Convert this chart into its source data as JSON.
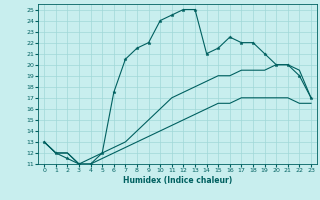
{
  "xlabel": "Humidex (Indice chaleur)",
  "bg_color": "#c8eeee",
  "grid_color": "#a0d8d8",
  "line_color": "#006060",
  "xlim": [
    -0.5,
    23.5
  ],
  "ylim": [
    11,
    25.5
  ],
  "yticks": [
    11,
    12,
    13,
    14,
    15,
    16,
    17,
    18,
    19,
    20,
    21,
    22,
    23,
    24,
    25
  ],
  "xticks": [
    0,
    1,
    2,
    3,
    4,
    5,
    6,
    7,
    8,
    9,
    10,
    11,
    12,
    13,
    14,
    15,
    16,
    17,
    18,
    19,
    20,
    21,
    22,
    23
  ],
  "series1_x": [
    0,
    1,
    2,
    3,
    4,
    5,
    6,
    7,
    8,
    9,
    10,
    11,
    12,
    13,
    14,
    15,
    16,
    17,
    18,
    19,
    20,
    21,
    22,
    23
  ],
  "series1_y": [
    13,
    12,
    11.5,
    11,
    11,
    12,
    17.5,
    20.5,
    21.5,
    22,
    24,
    24.5,
    25,
    25,
    21,
    21.5,
    22.5,
    22,
    22,
    21,
    20,
    20,
    19,
    17
  ],
  "series2_x": [
    0,
    1,
    2,
    3,
    4,
    5,
    6,
    7,
    8,
    9,
    10,
    11,
    12,
    13,
    14,
    15,
    16,
    17,
    18,
    19,
    20,
    21,
    22,
    23
  ],
  "series2_y": [
    13,
    12,
    12,
    11,
    11.5,
    12,
    12.5,
    13,
    14,
    15,
    16,
    17,
    17.5,
    18,
    18.5,
    19,
    19,
    19.5,
    19.5,
    19.5,
    20,
    20,
    19.5,
    17
  ],
  "series3_x": [
    0,
    1,
    2,
    3,
    4,
    5,
    6,
    7,
    8,
    9,
    10,
    11,
    12,
    13,
    14,
    15,
    16,
    17,
    18,
    19,
    20,
    21,
    22,
    23
  ],
  "series3_y": [
    13,
    12,
    12,
    11,
    11,
    11.5,
    12,
    12.5,
    13,
    13.5,
    14,
    14.5,
    15,
    15.5,
    16,
    16.5,
    16.5,
    17,
    17,
    17,
    17,
    17,
    16.5,
    16.5
  ]
}
